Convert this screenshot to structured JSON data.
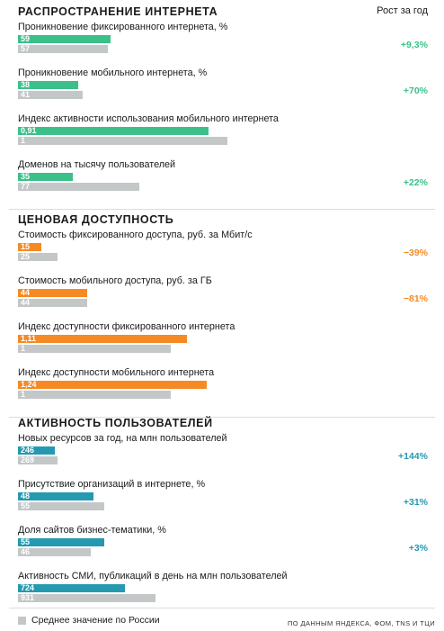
{
  "column_header": "Рост за год",
  "colors": {
    "section_1": "#3cc08a",
    "section_2": "#f58a25",
    "section_3": "#2599b0",
    "average": "#c4c7c8"
  },
  "legend": "Среднее значение по России",
  "source": "ПО ДАННЫМ ЯНДЕКСА, ФОМ, TNS И ТЦИ",
  "chart_data": {
    "type": "bar",
    "sections": [
      {
        "title": "РАСПРОСТРАНЕНИЕ ИНТЕРНЕТА",
        "metrics": [
          {
            "label": "Проникновение фиксированного интернета, %",
            "value": 59,
            "value_text": "59",
            "average": 57,
            "average_text": "57",
            "growth": "+9,3%",
            "scale_max": 160
          },
          {
            "label": "Проникновение мобильного интернета, %",
            "value": 38,
            "value_text": "38",
            "average": 41,
            "average_text": "41",
            "growth": "+70%",
            "scale_max": 160
          },
          {
            "label": "Индекс активности использования мобильного интернета",
            "value": 0.91,
            "value_text": "0,91",
            "average": 1,
            "average_text": "1",
            "growth": "",
            "scale_max": 1.2
          },
          {
            "label": "Доменов на тысячу пользователей",
            "value": 35,
            "value_text": "35",
            "average": 77,
            "average_text": "77",
            "growth": "+22%",
            "scale_max": 160
          }
        ]
      },
      {
        "title": "ЦЕНОВАЯ ДОСТУПНОСТЬ",
        "metrics": [
          {
            "label": "Стоимость фиксированного доступа, руб. за Мбит/с",
            "value": 15,
            "value_text": "15",
            "average": 25,
            "average_text": "25",
            "growth": "−39%",
            "scale_max": 160
          },
          {
            "label": "Стоимость мобильного доступа, руб. за ГБ",
            "value": 44,
            "value_text": "44",
            "average": 44,
            "average_text": "44",
            "growth": "−81%",
            "scale_max": 160
          },
          {
            "label": "Индекс доступности фиксированного интернета",
            "value": 1.11,
            "value_text": "1,11",
            "average": 1,
            "average_text": "1",
            "growth": "",
            "scale_max": 1.65
          },
          {
            "label": "Индекс доступности мобильного интернета",
            "value": 1.24,
            "value_text": "1,24",
            "average": 1,
            "average_text": "1",
            "growth": "",
            "scale_max": 1.65
          }
        ]
      },
      {
        "title": "АКТИВНОСТЬ ПОЛЬЗОВАТЕЛЕЙ",
        "metrics": [
          {
            "label": "Новых ресурсов за год, на млн пользователей",
            "value": 246,
            "value_text": "246",
            "average": 269,
            "average_text": "269",
            "growth": "+144%",
            "scale_max": 1700
          },
          {
            "label": "Присутствие организаций в интернете, %",
            "value": 48,
            "value_text": "48",
            "average": 55,
            "average_text": "55",
            "growth": "+31%",
            "scale_max": 160
          },
          {
            "label": "Доля сайтов бизнес-тематики, %",
            "value": 55,
            "value_text": "55",
            "average": 46,
            "average_text": "46",
            "growth": "+3%",
            "scale_max": 160
          },
          {
            "label": "Активность СМИ, публикаций в день на млн пользователей",
            "value": 724,
            "value_text": "724",
            "average": 931,
            "average_text": "931",
            "growth": "",
            "scale_max": 1700
          }
        ]
      }
    ]
  }
}
